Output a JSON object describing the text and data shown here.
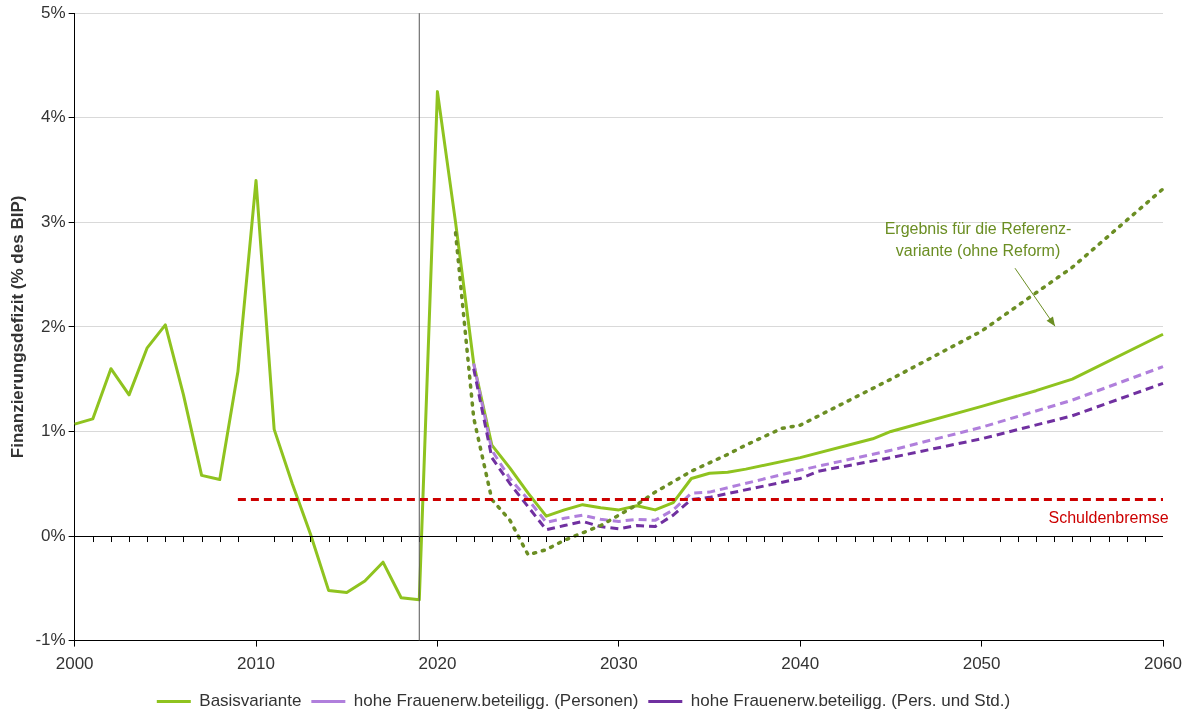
{
  "chart_data": {
    "type": "line",
    "ylabel": "Finanzierungsdefizit (% des BIP)",
    "xlim": [
      2000,
      2060
    ],
    "xticks": [
      2000,
      2010,
      2020,
      2030,
      2040,
      2050,
      2060
    ],
    "ylim": [
      -1,
      5
    ],
    "yticks": [
      {
        "value": -1,
        "label": "-1%"
      },
      {
        "value": 0,
        "label": "0%"
      },
      {
        "value": 1,
        "label": "1%"
      },
      {
        "value": 2,
        "label": "2%"
      },
      {
        "value": 3,
        "label": "3%"
      },
      {
        "value": 4,
        "label": "4%"
      },
      {
        "value": 5,
        "label": "5%"
      }
    ],
    "grid": "y",
    "legend": "bottom",
    "marker": "none",
    "series": [
      {
        "name": "Basisvariante",
        "color": "#8fc31f",
        "line_style": "solid",
        "x": [
          2000,
          2001,
          2002,
          2003,
          2004,
          2005,
          2006,
          2007,
          2008,
          2009,
          2010,
          2011,
          2012,
          2013,
          2014,
          2015,
          2016,
          2017,
          2018,
          2019,
          2020,
          2021,
          2022,
          2023,
          2024,
          2025,
          2026,
          2027,
          2028,
          2029,
          2030,
          2031,
          2032,
          2033,
          2034,
          2035,
          2036,
          2037,
          2040,
          2044,
          2045,
          2050,
          2053,
          2055,
          2060
        ],
        "values": [
          1.07,
          1.12,
          1.6,
          1.35,
          1.8,
          2.02,
          1.35,
          0.58,
          0.54,
          1.57,
          3.4,
          1.02,
          0.5,
          0.02,
          -0.52,
          -0.54,
          -0.43,
          -0.25,
          -0.59,
          -0.61,
          4.25,
          3.0,
          1.65,
          0.87,
          0.65,
          0.41,
          0.19,
          0.25,
          0.3,
          0.27,
          0.25,
          0.29,
          0.25,
          0.32,
          0.55,
          0.6,
          0.61,
          0.64,
          0.75,
          0.93,
          1.0,
          1.24,
          1.39,
          1.5,
          1.93
        ]
      },
      {
        "name": "hohe Frauenerw.beteiligg. (Personen)",
        "color": "#b07fdc",
        "line_style": "dashed",
        "x": [
          2022,
          2023,
          2024,
          2025,
          2026,
          2027,
          2028,
          2029,
          2030,
          2031,
          2032,
          2033,
          2034,
          2035,
          2040,
          2045,
          2050,
          2055,
          2060
        ],
        "values": [
          1.65,
          0.82,
          0.55,
          0.35,
          0.13,
          0.17,
          0.2,
          0.16,
          0.14,
          0.16,
          0.15,
          0.25,
          0.41,
          0.42,
          0.63,
          0.82,
          1.04,
          1.3,
          1.62
        ]
      },
      {
        "name": "hohe Frauenerw.beteiligg. (Pers. und Std.)",
        "color": "#7030a0",
        "line_style": "dashed",
        "x": [
          2022,
          2023,
          2024,
          2025,
          2026,
          2027,
          2028,
          2029,
          2030,
          2031,
          2032,
          2033,
          2034,
          2035,
          2040,
          2041,
          2045,
          2050,
          2055,
          2060
        ],
        "values": [
          1.6,
          0.75,
          0.5,
          0.28,
          0.06,
          0.1,
          0.14,
          0.09,
          0.07,
          0.1,
          0.09,
          0.2,
          0.35,
          0.37,
          0.55,
          0.62,
          0.75,
          0.93,
          1.15,
          1.46
        ]
      },
      {
        "color": "#6b8e23",
        "line_style": "dotted",
        "x": [
          2021,
          2022,
          2023,
          2024,
          2025,
          2026,
          2027,
          2028,
          2029,
          2030,
          2031,
          2032,
          2033,
          2034,
          2035,
          2036,
          2037,
          2038,
          2039,
          2040,
          2045,
          2050,
          2055,
          2060
        ],
        "values": [
          2.9,
          1.13,
          0.35,
          0.15,
          -0.18,
          -0.13,
          -0.04,
          0.03,
          0.1,
          0.2,
          0.3,
          0.42,
          0.52,
          0.62,
          0.7,
          0.78,
          0.87,
          0.95,
          1.03,
          1.06,
          1.5,
          1.96,
          2.57,
          3.32
        ]
      },
      {
        "color": "#cc0000",
        "line_style": "dashed",
        "x": [
          2009,
          2060
        ],
        "values": [
          0.35,
          0.35
        ]
      }
    ],
    "ref_lines": [
      {
        "axis": "x",
        "value": 2019,
        "color": "#555555",
        "line_style": "solid"
      }
    ],
    "annotations": [
      "Ergebnis für die Referenz-\nvariante (ohne Reform)",
      {
        "text": "Schuldenbremse",
        "x": 2057,
        "y": 0.35
      }
    ]
  }
}
